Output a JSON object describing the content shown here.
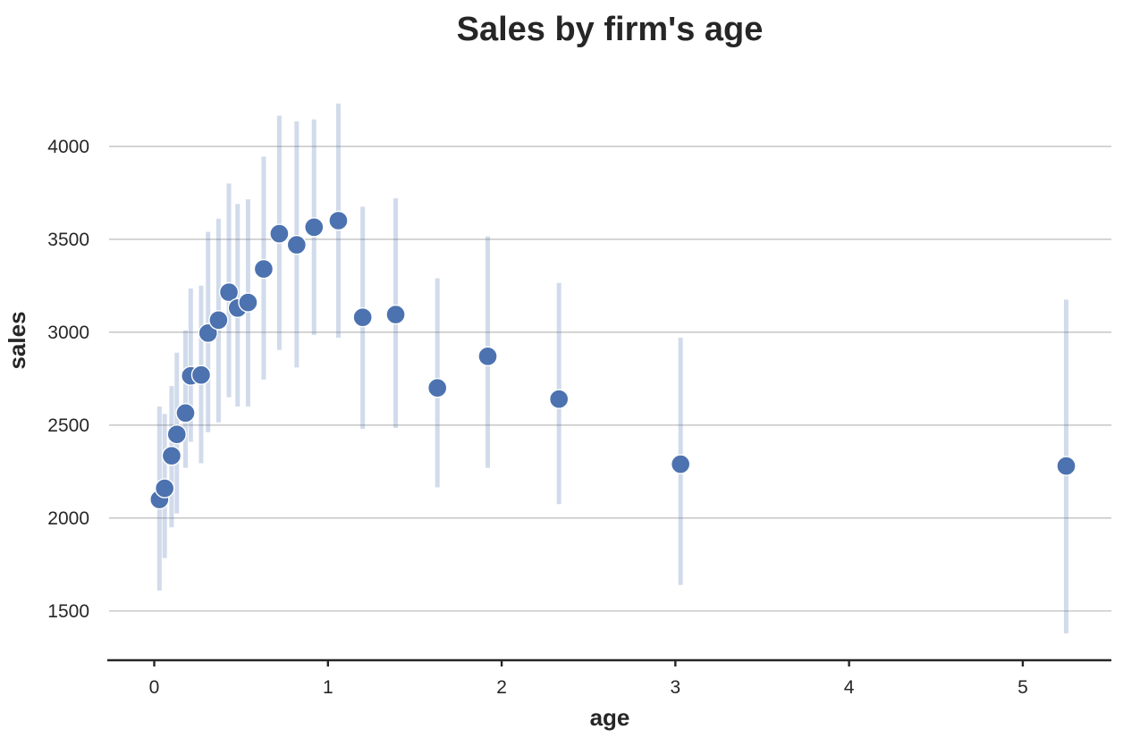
{
  "title": "Sales by firm's age",
  "chart_data": {
    "type": "scatter",
    "title": "Sales by firm's age",
    "xlabel": "age",
    "ylabel": "sales",
    "xlim": [
      -0.26,
      5.51
    ],
    "ylim": [
      1235,
      4345
    ],
    "x_ticks": [
      0,
      1,
      2,
      3,
      4,
      5
    ],
    "y_ticks": [
      1500,
      2000,
      2500,
      3000,
      3500,
      4000
    ],
    "grid": "horizontal-only",
    "legend": "none",
    "marker_color": "#4c72b0",
    "errorbar_color": "rgba(76,114,176,0.26)",
    "text_color": "#262626",
    "points": [
      {
        "age": 0.03,
        "sales": 2100,
        "ci_lo": 1610,
        "ci_hi": 2600
      },
      {
        "age": 0.06,
        "sales": 2160,
        "ci_lo": 1785,
        "ci_hi": 2560
      },
      {
        "age": 0.1,
        "sales": 2335,
        "ci_lo": 1950,
        "ci_hi": 2710
      },
      {
        "age": 0.13,
        "sales": 2450,
        "ci_lo": 2025,
        "ci_hi": 2890
      },
      {
        "age": 0.18,
        "sales": 2565,
        "ci_lo": 2270,
        "ci_hi": 3010
      },
      {
        "age": 0.21,
        "sales": 2765,
        "ci_lo": 2410,
        "ci_hi": 3235
      },
      {
        "age": 0.27,
        "sales": 2770,
        "ci_lo": 2295,
        "ci_hi": 3250
      },
      {
        "age": 0.31,
        "sales": 2995,
        "ci_lo": 2462,
        "ci_hi": 3540
      },
      {
        "age": 0.37,
        "sales": 3065,
        "ci_lo": 2515,
        "ci_hi": 3610
      },
      {
        "age": 0.43,
        "sales": 3215,
        "ci_lo": 2650,
        "ci_hi": 3800
      },
      {
        "age": 0.48,
        "sales": 3130,
        "ci_lo": 2600,
        "ci_hi": 3690
      },
      {
        "age": 0.54,
        "sales": 3160,
        "ci_lo": 2600,
        "ci_hi": 3715
      },
      {
        "age": 0.63,
        "sales": 3340,
        "ci_lo": 2745,
        "ci_hi": 3945
      },
      {
        "age": 0.72,
        "sales": 3530,
        "ci_lo": 2905,
        "ci_hi": 4165
      },
      {
        "age": 0.82,
        "sales": 3470,
        "ci_lo": 2810,
        "ci_hi": 4135
      },
      {
        "age": 0.92,
        "sales": 3565,
        "ci_lo": 2985,
        "ci_hi": 4145
      },
      {
        "age": 1.06,
        "sales": 3600,
        "ci_lo": 2970,
        "ci_hi": 4230
      },
      {
        "age": 1.2,
        "sales": 3080,
        "ci_lo": 2480,
        "ci_hi": 3675
      },
      {
        "age": 1.39,
        "sales": 3095,
        "ci_lo": 2485,
        "ci_hi": 3720
      },
      {
        "age": 1.63,
        "sales": 2700,
        "ci_lo": 2165,
        "ci_hi": 3290
      },
      {
        "age": 1.92,
        "sales": 2870,
        "ci_lo": 2270,
        "ci_hi": 3515
      },
      {
        "age": 2.33,
        "sales": 2640,
        "ci_lo": 2075,
        "ci_hi": 3265
      },
      {
        "age": 3.03,
        "sales": 2290,
        "ci_lo": 1640,
        "ci_hi": 2970
      },
      {
        "age": 5.25,
        "sales": 2280,
        "ci_lo": 1380,
        "ci_hi": 3175
      }
    ]
  }
}
